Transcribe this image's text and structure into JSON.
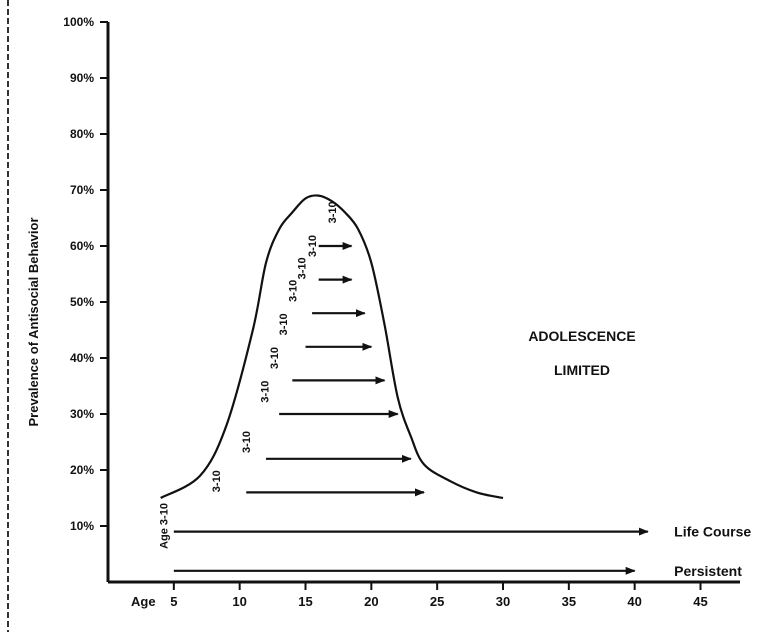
{
  "chart_data": {
    "type": "line",
    "title": "",
    "ylabel": "Prevalence of Antisocial Behavior",
    "xlabel": "",
    "x_axis_label": "Age",
    "x_ticks": [
      5,
      10,
      15,
      20,
      25,
      30,
      35,
      40,
      45
    ],
    "y_ticks": [
      "10%",
      "20%",
      "30%",
      "40%",
      "50%",
      "60%",
      "70%",
      "80%",
      "90%",
      "100%"
    ],
    "xlim": [
      0,
      48
    ],
    "ylim": [
      0,
      100
    ],
    "grid": false,
    "curve": {
      "x": [
        4,
        7,
        9,
        11,
        12,
        13,
        14,
        15,
        16,
        17,
        18,
        19,
        20,
        21,
        22,
        23,
        24,
        26,
        28,
        30
      ],
      "y": [
        15,
        19,
        28,
        45,
        57,
        63,
        66,
        68.5,
        69,
        68,
        66,
        63,
        57,
        46,
        33,
        26,
        21,
        18,
        16,
        15
      ]
    },
    "arrows": [
      {
        "label": "",
        "start": 16,
        "end": 18.5,
        "y": 60
      },
      {
        "label": "",
        "start": 16,
        "end": 18.5,
        "y": 54
      },
      {
        "label": "",
        "start": 15.5,
        "end": 19.5,
        "y": 48
      },
      {
        "label": "",
        "start": 15,
        "end": 20,
        "y": 42
      },
      {
        "label": "",
        "start": 14,
        "end": 21,
        "y": 36
      },
      {
        "label": "",
        "start": 13,
        "end": 22,
        "y": 30
      },
      {
        "label": "",
        "start": 12,
        "end": 23,
        "y": 22
      },
      {
        "label": "",
        "start": 10.5,
        "end": 24,
        "y": 16
      },
      {
        "label": "",
        "start": 5,
        "end": 41,
        "y": 9
      },
      {
        "label": "",
        "start": 5,
        "end": 40,
        "y": 2
      }
    ],
    "bar_labels": [
      {
        "text": "Age 3-10",
        "x": 4.5,
        "y": 10
      },
      {
        "text": "3-10",
        "x": 8.5,
        "y": 18
      },
      {
        "text": "3-10",
        "x": 10.8,
        "y": 25
      },
      {
        "text": "3-10",
        "x": 12.2,
        "y": 34
      },
      {
        "text": "3-10",
        "x": 12.9,
        "y": 40
      },
      {
        "text": "3-10",
        "x": 13.6,
        "y": 46
      },
      {
        "text": "3-10",
        "x": 14.3,
        "y": 52
      },
      {
        "text": "3-10",
        "x": 15,
        "y": 56
      },
      {
        "text": "3-10",
        "x": 15.8,
        "y": 60
      },
      {
        "text": "3-10",
        "x": 17.3,
        "y": 66
      }
    ],
    "annotations": [
      {
        "text": "ADOLESCENCE",
        "x": 36,
        "y": 43
      },
      {
        "text": "LIMITED",
        "x": 36,
        "y": 37
      }
    ],
    "series": [
      {
        "name": "Life Course",
        "x": 43,
        "y": 9
      },
      {
        "name": "Persistent",
        "x": 43,
        "y": 2
      }
    ]
  }
}
